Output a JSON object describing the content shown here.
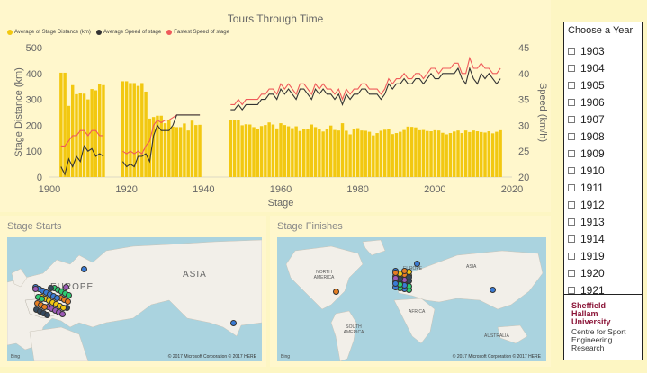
{
  "chart": {
    "title": "Tours Through Time",
    "legend": [
      {
        "label": "Average of Stage Distance (km)",
        "color": "#f2c811"
      },
      {
        "label": "Average Speed of stage",
        "color": "#333333"
      },
      {
        "label": "Fastest Speed of stage",
        "color": "#ef5a5a"
      }
    ]
  },
  "chart_data": {
    "type": "bar+line",
    "title": "Tours Through Time",
    "xlabel": "Stage",
    "ylabel_left": "Stage Distance (km)",
    "ylabel_right": "Speed (km/h)",
    "xlim": [
      1900,
      2020
    ],
    "ylim_left": [
      0,
      500
    ],
    "ylim_right": [
      20,
      45
    ],
    "x_ticks": [
      "1900",
      "1920",
      "1940",
      "1960",
      "1980",
      "2000",
      "2020"
    ],
    "y_ticks_left": [
      "0",
      "100",
      "200",
      "300",
      "400",
      "500"
    ],
    "y_ticks_right": [
      "20",
      "25",
      "30",
      "35",
      "40",
      "45"
    ],
    "series": [
      {
        "name": "Average of Stage Distance (km)",
        "type": "bar",
        "x": [
          1903,
          1904,
          1905,
          1906,
          1907,
          1908,
          1909,
          1910,
          1911,
          1912,
          1913,
          1914,
          1919,
          1920,
          1921,
          1922,
          1923,
          1924,
          1925,
          1926,
          1927,
          1928,
          1929,
          1930,
          1931,
          1932,
          1933,
          1934,
          1935,
          1936,
          1937,
          1938,
          1939,
          1947,
          1948,
          1949,
          1950,
          1951,
          1952,
          1953,
          1954,
          1955,
          1956,
          1957,
          1958,
          1959,
          1960,
          1961,
          1962,
          1963,
          1964,
          1965,
          1966,
          1967,
          1968,
          1969,
          1970,
          1971,
          1972,
          1973,
          1974,
          1975,
          1976,
          1977,
          1978,
          1979,
          1980,
          1981,
          1982,
          1983,
          1984,
          1985,
          1986,
          1987,
          1988,
          1989,
          1990,
          1991,
          1992,
          1993,
          1994,
          1995,
          1996,
          1997,
          1998,
          1999,
          2000,
          2001,
          2002,
          2003,
          2004,
          2005,
          2006,
          2007,
          2008,
          2009,
          2010,
          2011,
          2012,
          2013,
          2014,
          2015,
          2016,
          2017
        ],
        "values": [
          403,
          403,
          275,
          355,
          320,
          323,
          322,
          300,
          340,
          335,
          358,
          355,
          370,
          370,
          363,
          363,
          352,
          363,
          330,
          226,
          232,
          237,
          237,
          208,
          220,
          195,
          193,
          193,
          207,
          180,
          218,
          201,
          202,
          221,
          221,
          219,
          200,
          204,
          203,
          193,
          186,
          197,
          201,
          211,
          203,
          188,
          208,
          201,
          196,
          189,
          196,
          178,
          187,
          185,
          203,
          193,
          185,
          176,
          185,
          199,
          182,
          180,
          208,
          179,
          165,
          185,
          189,
          180,
          179,
          175,
          161,
          170,
          179,
          183,
          186,
          166,
          170,
          175,
          182,
          195,
          194,
          192,
          181,
          182,
          178,
          177,
          181,
          180,
          171,
          165,
          170,
          176,
          180,
          170,
          180,
          174,
          180,
          177,
          174,
          172,
          177,
          169,
          175,
          181
        ]
      },
      {
        "name": "Average Speed of stage",
        "type": "line",
        "x": [
          1903,
          1904,
          1905,
          1906,
          1907,
          1908,
          1909,
          1910,
          1911,
          1912,
          1913,
          1914,
          1919,
          1920,
          1921,
          1922,
          1923,
          1924,
          1925,
          1926,
          1927,
          1928,
          1929,
          1930,
          1931,
          1932,
          1933,
          1934,
          1935,
          1936,
          1937,
          1938,
          1939,
          1947,
          1948,
          1949,
          1950,
          1951,
          1952,
          1953,
          1954,
          1955,
          1956,
          1957,
          1958,
          1959,
          1960,
          1961,
          1962,
          1963,
          1964,
          1965,
          1966,
          1967,
          1968,
          1969,
          1970,
          1971,
          1972,
          1973,
          1974,
          1975,
          1976,
          1977,
          1978,
          1979,
          1980,
          1981,
          1982,
          1983,
          1984,
          1985,
          1986,
          1987,
          1988,
          1989,
          1990,
          1991,
          1992,
          1993,
          1994,
          1995,
          1996,
          1997,
          1998,
          1999,
          2000,
          2001,
          2002,
          2003,
          2004,
          2005,
          2006,
          2007,
          2008,
          2009,
          2010,
          2011,
          2012,
          2013,
          2014,
          2015,
          2016,
          2017
        ],
        "values": [
          22,
          20.5,
          23.5,
          22,
          24,
          23,
          26,
          25,
          25.5,
          24,
          24.5,
          24,
          23,
          22,
          22.5,
          22,
          24,
          24,
          24.5,
          23,
          28,
          30,
          29,
          29,
          29,
          30,
          32,
          32,
          32,
          32,
          32,
          32,
          32,
          33,
          33,
          34,
          33,
          34,
          34,
          34,
          34,
          35,
          35,
          36,
          36,
          35,
          37,
          36,
          37,
          36,
          35,
          37,
          37,
          36,
          35,
          37,
          36,
          37,
          36,
          36,
          35,
          36,
          34,
          36,
          35,
          36,
          36,
          37,
          37,
          36,
          36,
          36,
          35,
          36,
          38,
          37,
          38,
          38,
          39,
          38,
          38,
          39,
          39,
          38,
          39,
          40,
          39,
          39,
          40,
          40,
          40,
          40,
          41,
          39,
          38,
          41,
          39,
          38,
          40,
          39,
          40,
          39,
          38,
          39
        ]
      },
      {
        "name": "Fastest Speed of stage",
        "type": "line",
        "x": [
          1903,
          1904,
          1905,
          1906,
          1907,
          1908,
          1909,
          1910,
          1911,
          1912,
          1913,
          1914,
          1919,
          1920,
          1921,
          1922,
          1923,
          1924,
          1925,
          1926,
          1927,
          1928,
          1929,
          1930,
          1931,
          1932,
          1933,
          1934,
          1935,
          1936,
          1937,
          1938,
          1939,
          1947,
          1948,
          1949,
          1950,
          1951,
          1952,
          1953,
          1954,
          1955,
          1956,
          1957,
          1958,
          1959,
          1960,
          1961,
          1962,
          1963,
          1964,
          1965,
          1966,
          1967,
          1968,
          1969,
          1970,
          1971,
          1972,
          1973,
          1974,
          1975,
          1976,
          1977,
          1978,
          1979,
          1980,
          1981,
          1982,
          1983,
          1984,
          1985,
          1986,
          1987,
          1988,
          1989,
          1990,
          1991,
          1992,
          1993,
          1994,
          1995,
          1996,
          1997,
          1998,
          1999,
          2000,
          2001,
          2002,
          2003,
          2004,
          2005,
          2006,
          2007,
          2008,
          2009,
          2010,
          2011,
          2012,
          2013,
          2014,
          2015,
          2016,
          2017
        ],
        "values": [
          26,
          26,
          27,
          28,
          28,
          29,
          29,
          28,
          29,
          29,
          28,
          28,
          25,
          24.5,
          25,
          24.5,
          25,
          24.5,
          26,
          27,
          30,
          31,
          30.5,
          31,
          31,
          31.5,
          32,
          32,
          32,
          32,
          32,
          32,
          32,
          34,
          34,
          35,
          34,
          35,
          35,
          35,
          35,
          36,
          36,
          37,
          37,
          36,
          38,
          37,
          38,
          37,
          36,
          38,
          38,
          37,
          36,
          38,
          37,
          38,
          37,
          37,
          36,
          37,
          35,
          37,
          36,
          37,
          37,
          38,
          38,
          37,
          37,
          37,
          36,
          37,
          39,
          38,
          39,
          39,
          40,
          39,
          39,
          40,
          40,
          39,
          40,
          41,
          41,
          40,
          41,
          41,
          41,
          42,
          42,
          40,
          40,
          43,
          41,
          41,
          42,
          41,
          41,
          40,
          40,
          41
        ]
      }
    ],
    "grid": false,
    "legend_position": "top-left"
  },
  "maps": {
    "starts": {
      "title": "Stage Starts",
      "label_europe": "EUROPE",
      "label_asia": "ASIA",
      "bing": "Bing",
      "copyright": "© 2017 Microsoft Corporation   © 2017 HERE"
    },
    "finishes": {
      "title": "Stage Finishes",
      "label_north_america": "NORTH AMERICA",
      "label_europe": "EUROPE",
      "label_asia": "ASIA",
      "label_africa": "AFRICA",
      "label_south_america": "SOUTH AMERICA",
      "label_australia": "AUSTRALIA",
      "bing": "Bing",
      "copyright": "© 2017 Microsoft Corporation   © 2017 HERE"
    }
  },
  "slicer": {
    "title": "Choose a Year",
    "years": [
      "1903",
      "1904",
      "1905",
      "1906",
      "1907",
      "1908",
      "1909",
      "1910",
      "1911",
      "1912",
      "1913",
      "1914",
      "1919",
      "1920",
      "1921"
    ]
  },
  "logo": {
    "line1": "Sheffield",
    "line2": "Hallam",
    "line3": "University",
    "line4": "Centre for Sport",
    "line5": "Engineering",
    "line6": "Research"
  }
}
